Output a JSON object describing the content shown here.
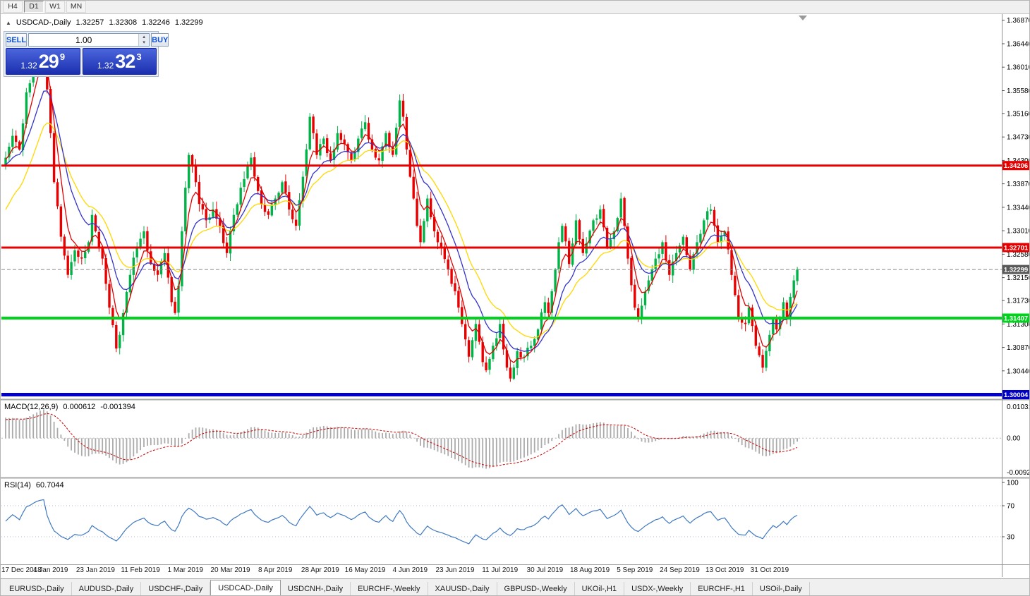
{
  "toolbar": {
    "timeframes": [
      "H4",
      "D1",
      "W1",
      "MN"
    ],
    "active_timeframe": "D1"
  },
  "icons": {
    "collapse": "▲",
    "volume_up": "▴",
    "volume_down": "▾"
  },
  "header": {
    "symbol": "USDCAD-,Daily",
    "open": "1.32257",
    "high": "1.32308",
    "low": "1.32246",
    "close": "1.32299"
  },
  "one_click": {
    "sell_label": "SELL",
    "buy_label": "BUY",
    "volume": "1.00",
    "sell_price": {
      "prefix": "1.32",
      "big": "29",
      "sup": "9"
    },
    "buy_price": {
      "prefix": "1.32",
      "big": "32",
      "sup": "3"
    }
  },
  "indicators": {
    "macd": {
      "name": "MACD(12,26,9)",
      "main_value": "0.000612",
      "signal_value": "-0.001394",
      "axis_labels": {
        "top": "0.010311",
        "zero": "0.00",
        "bottom": "-0.009201"
      }
    },
    "rsi": {
      "name": "RSI(14)",
      "value": "60.7044",
      "axis_labels": [
        "100",
        "70",
        "30"
      ],
      "levels": [
        70,
        30
      ]
    }
  },
  "tabs": {
    "items": [
      "EURUSD-,Daily",
      "AUDUSD-,Daily",
      "USDCHF-,Daily",
      "USDCAD-,Daily",
      "USDCNH-,Daily",
      "EURCHF-,Weekly",
      "XAUUSD-,Daily",
      "GBPUSD-,Weekly",
      "UKOil-,H1",
      "USDX-,Weekly",
      "EURCHF-,H1",
      "USOil-,Daily"
    ],
    "active_index": 3
  },
  "chart_data": {
    "type": "candlestick",
    "symbol": "USDCAD-",
    "timeframe": "Daily",
    "current_ohlc": {
      "open": 1.32257,
      "high": 1.32308,
      "low": 1.32246,
      "close": 1.32299
    },
    "price_domain": [
      1.2992,
      1.3697
    ],
    "y_axis_ticks": [
      "1.36870",
      "1.36440",
      "1.36010",
      "1.35580",
      "1.35160",
      "1.34730",
      "1.34300",
      "1.33870",
      "1.33440",
      "1.33010",
      "1.32580",
      "1.32150",
      "1.31730",
      "1.31300",
      "1.30870",
      "1.30440"
    ],
    "x_axis_labels": [
      "17 Dec 2018",
      "4 Jan 2019",
      "23 Jan 2019",
      "11 Feb 2019",
      "1 Mar 2019",
      "20 Mar 2019",
      "8 Apr 2019",
      "28 Apr 2019",
      "16 May 2019",
      "4 Jun 2019",
      "23 Jun 2019",
      "11 Jul 2019",
      "30 Jul 2019",
      "18 Aug 2019",
      "5 Sep 2019",
      "24 Sep 2019",
      "13 Oct 2019",
      "31 Oct 2019"
    ],
    "label_step": 13,
    "candle_count": 230,
    "anchors": [
      [
        0,
        1.3435
      ],
      [
        2,
        1.3475
      ],
      [
        4,
        1.345
      ],
      [
        6,
        1.3555
      ],
      [
        8,
        1.36
      ],
      [
        10,
        1.3645
      ],
      [
        11,
        1.3655
      ],
      [
        12,
        1.356
      ],
      [
        13,
        1.348
      ],
      [
        14,
        1.339
      ],
      [
        16,
        1.329
      ],
      [
        18,
        1.322
      ],
      [
        20,
        1.3265
      ],
      [
        22,
        1.325
      ],
      [
        24,
        1.328
      ],
      [
        25,
        1.333
      ],
      [
        26,
        1.33
      ],
      [
        28,
        1.325
      ],
      [
        30,
        1.316
      ],
      [
        32,
        1.3085
      ],
      [
        33,
        1.311
      ],
      [
        34,
        1.315
      ],
      [
        36,
        1.322
      ],
      [
        38,
        1.327
      ],
      [
        40,
        1.33
      ],
      [
        42,
        1.324
      ],
      [
        44,
        1.322
      ],
      [
        46,
        1.326
      ],
      [
        48,
        1.317
      ],
      [
        49,
        1.315
      ],
      [
        50,
        1.32
      ],
      [
        51,
        1.33
      ],
      [
        52,
        1.338
      ],
      [
        53,
        1.344
      ],
      [
        54,
        1.342
      ],
      [
        55,
        1.339
      ],
      [
        56,
        1.335
      ],
      [
        58,
        1.332
      ],
      [
        60,
        1.334
      ],
      [
        62,
        1.331
      ],
      [
        64,
        1.326
      ],
      [
        66,
        1.333
      ],
      [
        68,
        1.338
      ],
      [
        70,
        1.342
      ],
      [
        71,
        1.3435
      ],
      [
        72,
        1.34
      ],
      [
        74,
        1.335
      ],
      [
        76,
        1.333
      ],
      [
        78,
        1.336
      ],
      [
        80,
        1.339
      ],
      [
        82,
        1.334
      ],
      [
        84,
        1.331
      ],
      [
        86,
        1.34
      ],
      [
        87,
        1.345
      ],
      [
        88,
        1.351
      ],
      [
        89,
        1.348
      ],
      [
        90,
        1.344
      ],
      [
        92,
        1.347
      ],
      [
        94,
        1.343
      ],
      [
        96,
        1.348
      ],
      [
        98,
        1.346
      ],
      [
        100,
        1.343
      ],
      [
        102,
        1.347
      ],
      [
        104,
        1.35
      ],
      [
        106,
        1.345
      ],
      [
        108,
        1.343
      ],
      [
        110,
        1.348
      ],
      [
        112,
        1.344
      ],
      [
        113,
        1.349
      ],
      [
        114,
        1.354
      ],
      [
        115,
        1.351
      ],
      [
        116,
        1.345
      ],
      [
        117,
        1.34
      ],
      [
        118,
        1.336
      ],
      [
        119,
        1.331
      ],
      [
        120,
        1.328
      ],
      [
        122,
        1.336
      ],
      [
        124,
        1.33
      ],
      [
        126,
        1.327
      ],
      [
        128,
        1.323
      ],
      [
        130,
        1.319
      ],
      [
        132,
        1.313
      ],
      [
        134,
        1.307
      ],
      [
        136,
        1.313
      ],
      [
        138,
        1.306
      ],
      [
        139,
        1.3045
      ],
      [
        141,
        1.309
      ],
      [
        143,
        1.313
      ],
      [
        145,
        1.305
      ],
      [
        146,
        1.303
      ],
      [
        148,
        1.308
      ],
      [
        150,
        1.307
      ],
      [
        152,
        1.309
      ],
      [
        154,
        1.312
      ],
      [
        156,
        1.317
      ],
      [
        157,
        1.315
      ],
      [
        158,
        1.319
      ],
      [
        159,
        1.323
      ],
      [
        160,
        1.328
      ],
      [
        161,
        1.331
      ],
      [
        163,
        1.324
      ],
      [
        165,
        1.332
      ],
      [
        167,
        1.326
      ],
      [
        170,
        1.332
      ],
      [
        172,
        1.334
      ],
      [
        174,
        1.327
      ],
      [
        176,
        1.33
      ],
      [
        178,
        1.336
      ],
      [
        179,
        1.331
      ],
      [
        180,
        1.325
      ],
      [
        182,
        1.316
      ],
      [
        183,
        1.314
      ],
      [
        186,
        1.321
      ],
      [
        188,
        1.325
      ],
      [
        190,
        1.328
      ],
      [
        192,
        1.322
      ],
      [
        194,
        1.326
      ],
      [
        196,
        1.329
      ],
      [
        198,
        1.323
      ],
      [
        200,
        1.328
      ],
      [
        202,
        1.332
      ],
      [
        204,
        1.334
      ],
      [
        206,
        1.328
      ],
      [
        208,
        1.33
      ],
      [
        210,
        1.322
      ],
      [
        212,
        1.314
      ],
      [
        214,
        1.313
      ],
      [
        215,
        1.316
      ],
      [
        217,
        1.309
      ],
      [
        219,
        1.305
      ],
      [
        221,
        1.311
      ],
      [
        222,
        1.314
      ],
      [
        223,
        1.312
      ],
      [
        225,
        1.317
      ],
      [
        226,
        1.314
      ],
      [
        228,
        1.321
      ],
      [
        229,
        1.32299
      ]
    ],
    "price_lines": [
      {
        "value": 1.34206,
        "label": "1.34206",
        "color": "#e60000",
        "width": 3,
        "style": "solid"
      },
      {
        "value": 1.32701,
        "label": "1.32701",
        "color": "#e60000",
        "width": 3,
        "style": "solid"
      },
      {
        "value": 1.32299,
        "label": "1.32299",
        "color": "#888888",
        "width": 1,
        "style": "dashed",
        "tag_color": "#5a5a5a"
      },
      {
        "value": 1.31407,
        "label": "1.31407",
        "color": "#00d21e",
        "width": 4,
        "style": "solid"
      },
      {
        "value": 1.30004,
        "label": "1.30004",
        "color": "#0000c8",
        "width": 5,
        "style": "solid"
      }
    ],
    "moving_averages": [
      {
        "period": 20,
        "color": "#ffd800",
        "seed": 1.333
      },
      {
        "period": 12,
        "color": "#3333cc",
        "seed": 1.342
      },
      {
        "period": 5,
        "color": "#e00000",
        "seed": 1.343
      }
    ],
    "colors": {
      "bull": "#00b347",
      "bear": "#e80000",
      "macd_hist": "#ababab",
      "macd_signal": "#cc0000",
      "rsi_line": "#3e78c0",
      "current_price_line": "#888888"
    },
    "macd_params": {
      "fast": 12,
      "slow": 26,
      "signal": 9
    },
    "rsi_period": 14
  }
}
